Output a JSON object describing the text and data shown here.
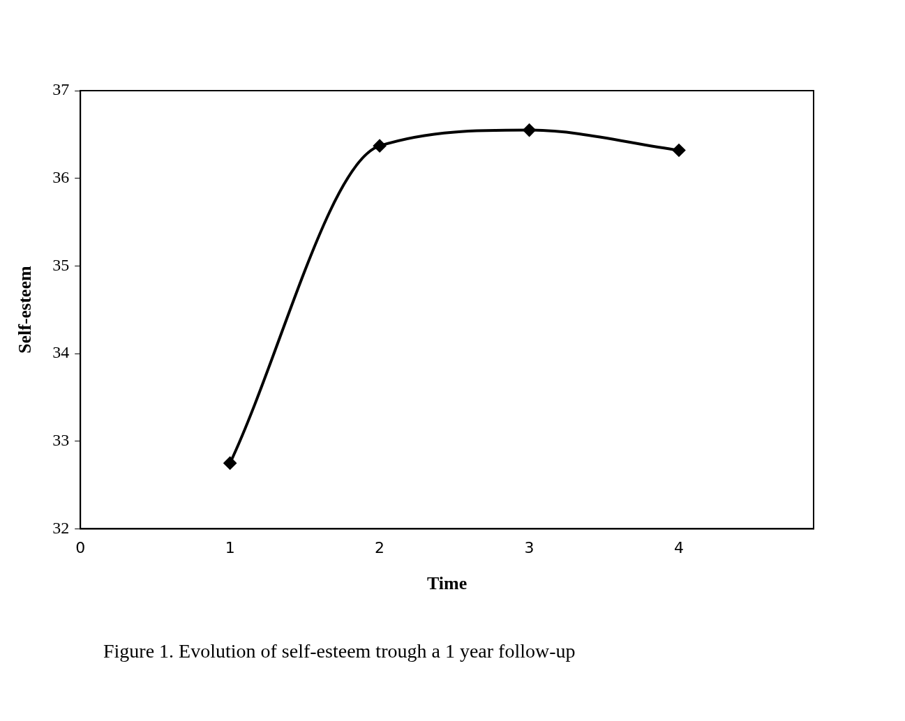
{
  "chart_data": {
    "type": "line",
    "xlabel": "Time",
    "ylabel": "Self-esteem",
    "x": [
      1,
      2,
      3,
      4
    ],
    "series": [
      {
        "color": "#000000",
        "values": [
          32.75,
          36.37,
          36.55,
          36.32
        ]
      }
    ],
    "xlim": [
      0,
      4.9
    ],
    "xticks": [
      0,
      1,
      2,
      3,
      4
    ],
    "ylim": [
      32,
      37
    ],
    "yticks": [
      32,
      33,
      34,
      35,
      36,
      37
    ],
    "grid": false,
    "legend": false,
    "marker": "diamond",
    "line_style": "solid",
    "annotations": [
      "Figure 1. Evolution of self-esteem trough a 1 year follow-up"
    ]
  }
}
